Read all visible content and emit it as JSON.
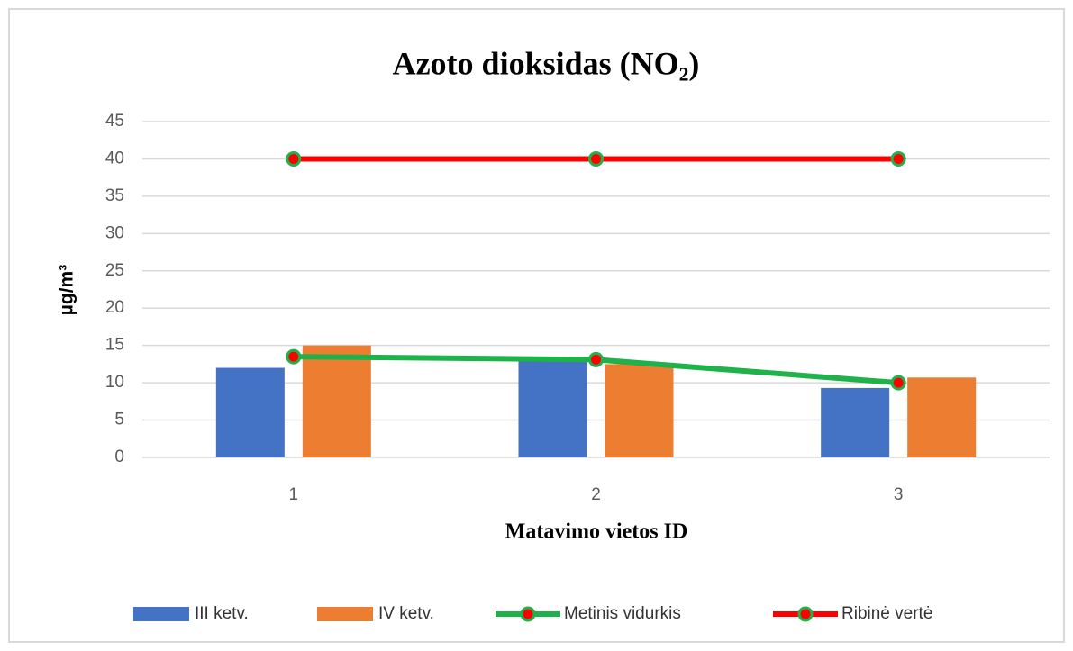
{
  "chart_data": {
    "type": "bar",
    "title": "Azoto dioksidas (NO₂)",
    "x_label": "Matavimo vietos ID",
    "y_label": "µg/m³",
    "categories": [
      "1",
      "2",
      "3"
    ],
    "series": [
      {
        "name": "III ketv.",
        "type": "bar",
        "color": "#4472c4",
        "values": [
          12,
          13.2,
          9.3
        ]
      },
      {
        "name": "IV ketv.",
        "type": "bar",
        "color": "#ed7d31",
        "values": [
          15,
          12.5,
          10.7
        ]
      },
      {
        "name": "Metinis vidurkis",
        "type": "line",
        "color": "#1fb24a",
        "values": [
          13.5,
          13.1,
          10
        ]
      },
      {
        "name": "Ribinė vertė",
        "type": "line",
        "color": "#ff0000",
        "values": [
          40,
          40,
          40
        ]
      }
    ],
    "ylim": [
      0,
      45
    ],
    "yticks": [
      0,
      5,
      10,
      15,
      20,
      25,
      30,
      35,
      40,
      45
    ],
    "grid": true,
    "legend": "bottom"
  }
}
